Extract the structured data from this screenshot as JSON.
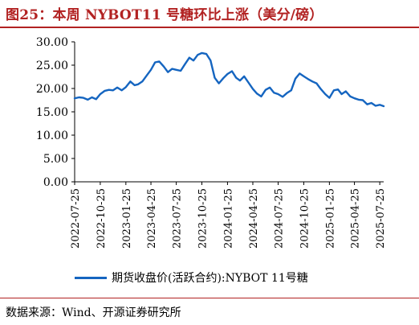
{
  "header": {
    "title": "图25：本周 NYBOT11 号糖环比上涨（美分/磅）"
  },
  "footer": {
    "source": "数据来源：Wind、开源证券研究所"
  },
  "colors": {
    "accent": "#b22222",
    "series": "#1565c0"
  },
  "chart_data": {
    "type": "line",
    "title": "",
    "xlabel": "",
    "ylabel": "",
    "ylim": [
      0,
      30
    ],
    "yticks": [
      "0.00",
      "5.00",
      "10.00",
      "15.00",
      "20.00",
      "25.00",
      "30.00"
    ],
    "xlim": [
      "2022-07-25",
      "2025-08-08"
    ],
    "xticks": [
      "2022-07-25",
      "2022-10-25",
      "2023-01-25",
      "2023-04-25",
      "2023-07-25",
      "2023-10-25",
      "2024-01-25",
      "2024-04-25",
      "2024-07-25",
      "2024-10-25",
      "2025-01-25",
      "2025-04-25",
      "2025-07-25"
    ],
    "legend": "bottom",
    "grid": false,
    "series": [
      {
        "name": "期货收盘价(活跃合约):NYBOT 11号糖",
        "x": [
          "2022-07-25",
          "2022-08-10",
          "2022-08-25",
          "2022-09-10",
          "2022-09-25",
          "2022-10-10",
          "2022-10-25",
          "2022-11-10",
          "2022-11-25",
          "2022-12-10",
          "2022-12-25",
          "2023-01-10",
          "2023-01-25",
          "2023-02-10",
          "2023-02-25",
          "2023-03-10",
          "2023-03-25",
          "2023-04-10",
          "2023-04-25",
          "2023-05-10",
          "2023-05-25",
          "2023-06-10",
          "2023-06-25",
          "2023-07-10",
          "2023-07-25",
          "2023-08-10",
          "2023-08-25",
          "2023-09-10",
          "2023-09-25",
          "2023-10-10",
          "2023-10-25",
          "2023-11-10",
          "2023-11-25",
          "2023-12-10",
          "2023-12-25",
          "2024-01-10",
          "2024-01-25",
          "2024-02-10",
          "2024-02-25",
          "2024-03-10",
          "2024-03-25",
          "2024-04-10",
          "2024-04-25",
          "2024-05-10",
          "2024-05-25",
          "2024-06-10",
          "2024-06-25",
          "2024-07-10",
          "2024-07-25",
          "2024-08-10",
          "2024-08-25",
          "2024-09-10",
          "2024-09-25",
          "2024-10-10",
          "2024-10-25",
          "2024-11-10",
          "2024-11-25",
          "2024-12-10",
          "2024-12-25",
          "2025-01-10",
          "2025-01-25",
          "2025-02-10",
          "2025-02-25",
          "2025-03-10",
          "2025-03-25",
          "2025-04-10",
          "2025-04-25",
          "2025-05-10",
          "2025-05-25",
          "2025-06-10",
          "2025-06-25",
          "2025-07-10",
          "2025-07-25",
          "2025-08-08"
        ],
        "y": [
          17.9,
          18.1,
          18.0,
          17.6,
          18.1,
          17.7,
          18.8,
          19.5,
          19.7,
          19.6,
          20.2,
          19.6,
          20.3,
          21.5,
          20.7,
          20.9,
          21.5,
          22.8,
          24.0,
          25.6,
          25.8,
          24.7,
          23.5,
          24.2,
          24.0,
          23.8,
          25.2,
          26.6,
          26.0,
          27.2,
          27.6,
          27.4,
          26.0,
          22.3,
          21.1,
          22.2,
          23.1,
          23.7,
          22.3,
          21.7,
          22.6,
          21.2,
          19.9,
          18.9,
          18.3,
          19.7,
          20.2,
          19.1,
          18.8,
          18.2,
          19.0,
          19.6,
          22.1,
          23.2,
          22.6,
          22.0,
          21.5,
          21.1,
          19.9,
          18.8,
          18.0,
          19.6,
          19.8,
          18.8,
          19.4,
          18.3,
          17.9,
          17.6,
          17.5,
          16.6,
          16.9,
          16.3,
          16.5,
          16.2
        ]
      }
    ]
  }
}
